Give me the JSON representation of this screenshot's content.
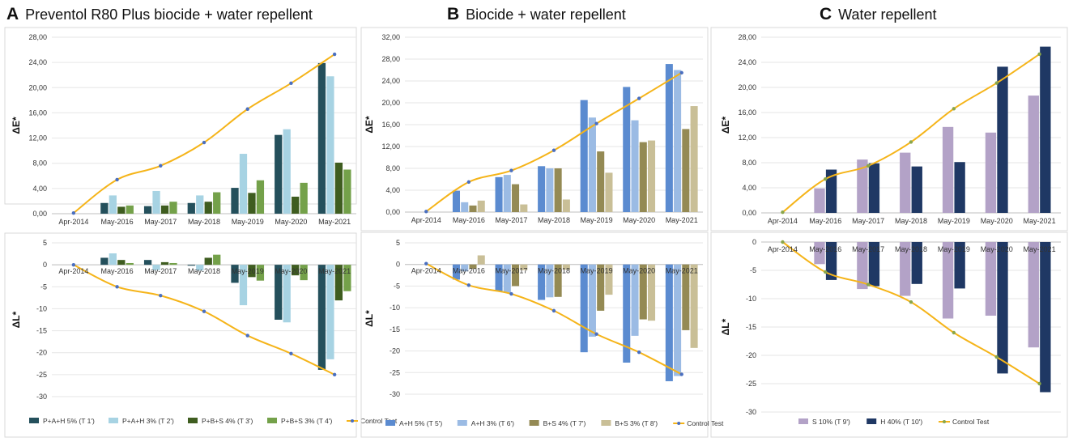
{
  "panels": [
    {
      "letter": "A",
      "title": "Preventol R80 Plus biocide + water repellent"
    },
    {
      "letter": "B",
      "title": "Biocide + water repellent"
    },
    {
      "letter": "C",
      "title": "Water repellent"
    }
  ],
  "chart_data": [
    {
      "type": "bar",
      "panel": "A",
      "metric": "dE",
      "ylabel": "ΔE*",
      "ylim": [
        0,
        28
      ],
      "yticks": [
        "0,00",
        "4,00",
        "8,00",
        "12,00",
        "16,00",
        "20,00",
        "24,00",
        "28,00"
      ],
      "categories": [
        "Apr-2014",
        "May-2016",
        "May-2017",
        "May-2018",
        "May-2019",
        "May-2020",
        "May-2021"
      ],
      "series": [
        {
          "name": "P+A+H 5% (T 1')",
          "color": "#24505c",
          "values": [
            null,
            1.7,
            1.2,
            1.7,
            4.1,
            12.5,
            23.9
          ]
        },
        {
          "name": "P+A+H 3% (T 2')",
          "color": "#a7d3e3",
          "values": [
            null,
            2.9,
            3.6,
            2.9,
            9.5,
            13.4,
            21.8
          ]
        },
        {
          "name": "P+B+S 4% (T 3')",
          "color": "#3f5d20",
          "values": [
            null,
            1.1,
            1.3,
            1.9,
            3.3,
            2.7,
            8.1
          ]
        },
        {
          "name": "P+B+S 3% (T 4')",
          "color": "#74a14a",
          "values": [
            null,
            1.3,
            1.9,
            3.4,
            5.3,
            4.9,
            7.0
          ]
        }
      ],
      "line": {
        "name": "Control Test",
        "color": "#f5b419",
        "values": [
          0.1,
          5.4,
          7.6,
          11.3,
          16.6,
          20.7,
          25.3
        ]
      }
    },
    {
      "type": "bar",
      "panel": "A",
      "metric": "dL",
      "ylabel": "ΔL*",
      "ylim": [
        -30,
        5
      ],
      "yticks": [
        "5",
        "0",
        "-5",
        "-10",
        "-15",
        "-20",
        "-25",
        "-30"
      ],
      "categories": [
        "Apr-2014",
        "May-2016",
        "May-2017",
        "May-2018",
        "May-2019",
        "May-2020",
        "May-2021"
      ],
      "series": [
        {
          "name": "P+A+H 5% (T 1')",
          "color": "#24505c",
          "values": [
            null,
            1.6,
            1.1,
            -0.2,
            -4.1,
            -12.5,
            -23.9
          ]
        },
        {
          "name": "P+A+H 3% (T 2')",
          "color": "#a7d3e3",
          "values": [
            null,
            2.6,
            -1.2,
            -1.3,
            -9.2,
            -13.1,
            -21.5
          ]
        },
        {
          "name": "P+B+S 4% (T 3')",
          "color": "#3f5d20",
          "values": [
            null,
            1.1,
            0.6,
            1.6,
            -2.8,
            -2.4,
            -8.1
          ]
        },
        {
          "name": "P+B+S 3% (T 4')",
          "color": "#74a14a",
          "values": [
            null,
            0.4,
            0.4,
            2.3,
            -3.6,
            -3.5,
            -6.0
          ]
        }
      ],
      "line": {
        "name": "Control Test",
        "color": "#f5b419",
        "values": [
          0,
          -5,
          -7,
          -10.6,
          -16.1,
          -20.2,
          -25
        ]
      }
    },
    {
      "type": "bar",
      "panel": "B",
      "metric": "dE",
      "ylabel": "ΔE*",
      "ylim": [
        0,
        32
      ],
      "yticks": [
        "0,00",
        "4,00",
        "8,00",
        "12,00",
        "16,00",
        "20,00",
        "24,00",
        "28,00",
        "32,00"
      ],
      "categories": [
        "Apr-2014",
        "May-2016",
        "May-2017",
        "May-2018",
        "May-2019",
        "May-2020",
        "May-2021"
      ],
      "series": [
        {
          "name": "A+H 5% (T 5')",
          "color": "#5b8bd0",
          "values": [
            null,
            3.9,
            6.4,
            8.4,
            20.5,
            22.9,
            27.1
          ]
        },
        {
          "name": "A+H 3% (T 6')",
          "color": "#9bbbe4",
          "values": [
            null,
            1.8,
            6.8,
            8.0,
            17.3,
            16.8,
            26.0
          ]
        },
        {
          "name": "B+S 4% (T 7')",
          "color": "#948a54",
          "values": [
            null,
            1.2,
            5.1,
            8.0,
            11.1,
            12.8,
            15.2
          ]
        },
        {
          "name": "B+S 3% (T 8')",
          "color": "#c9bf97",
          "values": [
            null,
            2.1,
            1.4,
            2.3,
            7.2,
            13.1,
            19.4
          ]
        }
      ],
      "line": {
        "name": "Control Test",
        "color": "#f5b419",
        "values": [
          0.1,
          5.5,
          7.6,
          11.3,
          16.2,
          20.8,
          25.5
        ]
      }
    },
    {
      "type": "bar",
      "panel": "B",
      "metric": "dL",
      "ylabel": "ΔL*",
      "ylim": [
        -30,
        5
      ],
      "yticks": [
        "5",
        "0",
        "-5",
        "-10",
        "-15",
        "-20",
        "-25",
        "-30"
      ],
      "categories": [
        "Apr-2014",
        "May-2016",
        "May-2017",
        "May-2018",
        "May-2019",
        "May-2020",
        "May-2021"
      ],
      "series": [
        {
          "name": "A+H 5% (T 5')",
          "color": "#5b8bd0",
          "values": [
            null,
            -3.5,
            -6.2,
            -8.2,
            -20.3,
            -22.7,
            -27
          ]
        },
        {
          "name": "A+H 3% (T 6')",
          "color": "#9bbbe4",
          "values": [
            null,
            -1.6,
            -6.6,
            -7.6,
            -16.7,
            -16.5,
            -25.8
          ]
        },
        {
          "name": "B+S 4% (T 7')",
          "color": "#948a54",
          "values": [
            null,
            -1.0,
            -5.0,
            -7.5,
            -10.7,
            -12.7,
            -15.2
          ]
        },
        {
          "name": "B+S 3% (T 8')",
          "color": "#c9bf97",
          "values": [
            null,
            2.1,
            -1.3,
            -1.2,
            -7.0,
            -13.0,
            -19.3
          ]
        }
      ],
      "line": {
        "name": "Control Test",
        "color": "#f5b419",
        "values": [
          0.2,
          -4.8,
          -6.8,
          -10.7,
          -16.1,
          -20.3,
          -25.4
        ]
      }
    },
    {
      "type": "bar",
      "panel": "C",
      "metric": "dE",
      "ylabel": "ΔE*",
      "ylim": [
        0,
        28
      ],
      "yticks": [
        "0,00",
        "4,00",
        "8,00",
        "12,00",
        "16,00",
        "20,00",
        "24,00",
        "28,00"
      ],
      "categories": [
        "Apr-2014",
        "May-2016",
        "May-2017",
        "May-2018",
        "May-2019",
        "May-2020",
        "May-2021"
      ],
      "series": [
        {
          "name": "S 10% (T 9')",
          "color": "#b3a2c7",
          "values": [
            null,
            3.9,
            8.5,
            9.6,
            13.7,
            12.8,
            18.7
          ]
        },
        {
          "name": "H 40% (T 10')",
          "color": "#1f3864",
          "values": [
            null,
            6.9,
            7.9,
            7.4,
            8.1,
            23.3,
            26.5
          ]
        }
      ],
      "line": {
        "name": "Control Test",
        "color": "#f5b419",
        "values": [
          0.1,
          5.4,
          7.5,
          11.3,
          16.6,
          20.7,
          25.3
        ]
      }
    },
    {
      "type": "bar",
      "panel": "C",
      "metric": "dL",
      "ylabel": "ΔL*",
      "ylim": [
        -30,
        0
      ],
      "yticks": [
        "0",
        "-5",
        "-10",
        "-15",
        "-20",
        "-25",
        "-30"
      ],
      "categories": [
        "Apr-2014",
        "May-2016",
        "May-2017",
        "May-2018",
        "May-2019",
        "May-2020",
        "May-2021"
      ],
      "series": [
        {
          "name": "S 10% (T 9')",
          "color": "#b3a2c7",
          "values": [
            null,
            -3.9,
            -8.3,
            -9.5,
            -13.5,
            -13.0,
            -18.6
          ]
        },
        {
          "name": "H 40% (T 10')",
          "color": "#1f3864",
          "values": [
            null,
            -6.7,
            -7.8,
            -7.4,
            -8.2,
            -23.2,
            -26.5
          ]
        }
      ],
      "line": {
        "name": "Control Test",
        "color": "#f5b419",
        "values": [
          0,
          -5.3,
          -7.5,
          -10.6,
          -16.0,
          -20.3,
          -25.0
        ]
      }
    }
  ]
}
